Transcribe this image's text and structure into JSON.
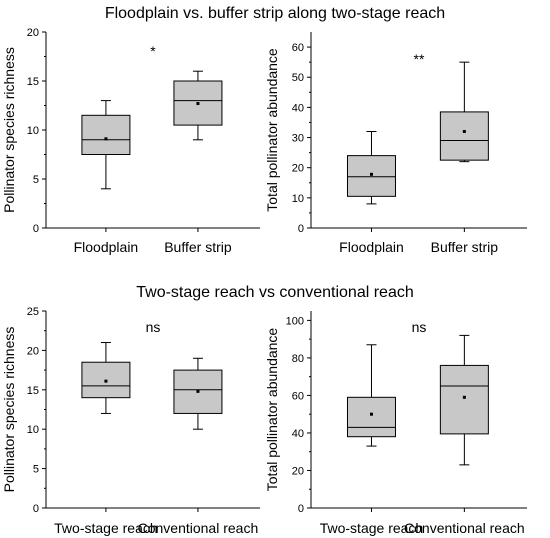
{
  "sections": [
    {
      "title": "Floodplain vs. buffer strip along two-stage reach"
    },
    {
      "title": "Two-stage reach vs conventional reach"
    }
  ],
  "chart_data": [
    {
      "type": "box",
      "ylabel": "Pollinator species richness",
      "ylim": [
        0,
        20
      ],
      "yticks": [
        0,
        5,
        10,
        15,
        20
      ],
      "significance": "*",
      "categories": [
        "Floodplain",
        "Buffer strip"
      ],
      "boxes": [
        {
          "category": "Floodplain",
          "min": 4,
          "q1": 7.5,
          "median": 9,
          "q3": 11.5,
          "max": 13,
          "mean": 9.1
        },
        {
          "category": "Buffer strip",
          "min": 9,
          "q1": 10.5,
          "median": 13,
          "q3": 15,
          "max": 16,
          "mean": 12.7
        }
      ]
    },
    {
      "type": "box",
      "ylabel": "Total pollinator abundance",
      "ylim": [
        0,
        65
      ],
      "yticks": [
        0,
        10,
        20,
        30,
        40,
        50,
        60
      ],
      "significance": "**",
      "categories": [
        "Floodplain",
        "Buffer strip"
      ],
      "boxes": [
        {
          "category": "Floodplain",
          "min": 8,
          "q1": 10.5,
          "median": 17,
          "q3": 24,
          "max": 32,
          "mean": 17.8
        },
        {
          "category": "Buffer strip",
          "min": 22,
          "q1": 22.5,
          "median": 29,
          "q3": 38.5,
          "max": 55,
          "mean": 32
        }
      ]
    },
    {
      "type": "box",
      "ylabel": "Pollinator species richness",
      "ylim": [
        0,
        25
      ],
      "yticks": [
        0,
        5,
        10,
        15,
        20,
        25
      ],
      "significance": "ns",
      "categories": [
        "Two-stage reach",
        "Conventional reach"
      ],
      "boxes": [
        {
          "category": "Two-stage reach",
          "min": 12,
          "q1": 14,
          "median": 15.5,
          "q3": 18.5,
          "max": 21,
          "mean": 16.1
        },
        {
          "category": "Conventional reach",
          "min": 10,
          "q1": 12,
          "median": 15,
          "q3": 17.5,
          "max": 19,
          "mean": 14.8
        }
      ]
    },
    {
      "type": "box",
      "ylabel": "Total pollinator abundance",
      "ylim": [
        0,
        105
      ],
      "yticks": [
        0,
        20,
        40,
        60,
        80,
        100
      ],
      "significance": "ns",
      "categories": [
        "Two-stage reach",
        "Conventional reach"
      ],
      "boxes": [
        {
          "category": "Two-stage reach",
          "min": 33,
          "q1": 38,
          "median": 43,
          "q3": 59,
          "max": 87,
          "mean": 50
        },
        {
          "category": "Conventional reach",
          "min": 23,
          "q1": 39.5,
          "median": 65,
          "q3": 76,
          "max": 92,
          "mean": 59
        }
      ]
    }
  ],
  "colors": {
    "box_fill": "#c8c8c8",
    "line": "#000000",
    "background": "#ffffff"
  }
}
